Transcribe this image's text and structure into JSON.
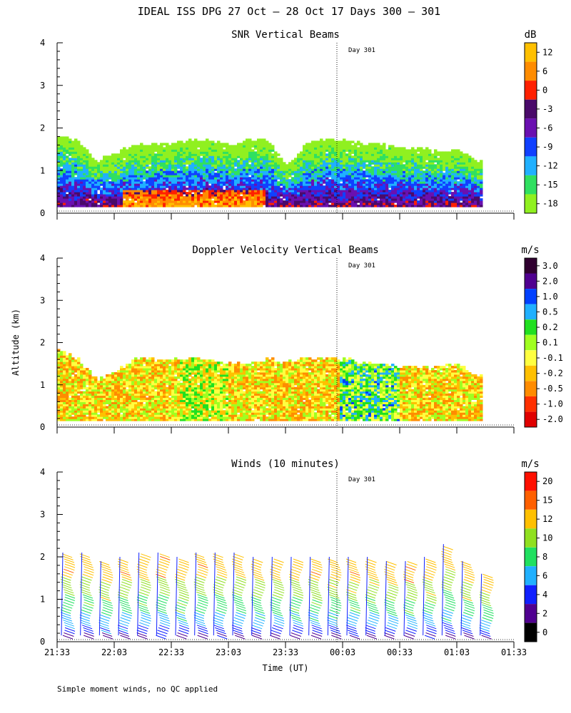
{
  "title": "IDEAL ISS DPG  27 Oct – 28 Oct 17 Days 300 – 301",
  "ylabel": "Altitude (km)",
  "xlabel": "Time (UT)",
  "footnote": "Simple moment winds, no QC applied",
  "day_marker": "Day 301",
  "chart_data": [
    {
      "type": "heatmap",
      "title": "SNR Vertical Beams",
      "unit": "dB",
      "ylim": [
        0,
        4
      ],
      "yticks": [
        "0",
        "1",
        "2",
        "3",
        "4"
      ],
      "colorbar_labels": [
        "12",
        "6",
        "0",
        "-3",
        "-6",
        "-9",
        "-12",
        "-15",
        "-18"
      ],
      "colors": [
        "#ffc000",
        "#ff8c00",
        "#ff2000",
        "#4a0a6a",
        "#6a10b0",
        "#1040ff",
        "#20b0ff",
        "#30e060",
        "#90f020"
      ],
      "profiles": [
        {
          "time": "21:33",
          "top_km": 1.8
        },
        {
          "time": "21:43",
          "top_km": 1.7
        },
        {
          "time": "21:53",
          "top_km": 1.2
        },
        {
          "time": "22:03",
          "top_km": 1.4
        },
        {
          "time": "22:13",
          "top_km": 1.6
        },
        {
          "time": "22:23",
          "top_km": 1.6
        },
        {
          "time": "22:33",
          "top_km": 1.6
        },
        {
          "time": "22:43",
          "top_km": 1.7
        },
        {
          "time": "22:53",
          "top_km": 1.7
        },
        {
          "time": "23:03",
          "top_km": 1.6
        },
        {
          "time": "23:13",
          "top_km": 1.7
        },
        {
          "time": "23:23",
          "top_km": 1.7
        },
        {
          "time": "23:33",
          "top_km": 1.1
        },
        {
          "time": "23:43",
          "top_km": 1.6
        },
        {
          "time": "23:53",
          "top_km": 1.7
        },
        {
          "time": "00:03",
          "top_km": 1.7
        },
        {
          "time": "00:13",
          "top_km": 1.6
        },
        {
          "time": "00:23",
          "top_km": 1.6
        },
        {
          "time": "00:33",
          "top_km": 1.5
        },
        {
          "time": "00:43",
          "top_km": 1.5
        },
        {
          "time": "00:53",
          "top_km": 1.4
        },
        {
          "time": "01:03",
          "top_km": 1.5
        },
        {
          "time": "01:13",
          "top_km": 1.2
        }
      ]
    },
    {
      "type": "heatmap",
      "title": "Doppler Velocity Vertical Beams",
      "unit": "m/s",
      "ylim": [
        0,
        4
      ],
      "yticks": [
        "0",
        "1",
        "2",
        "3",
        "4"
      ],
      "colorbar_labels": [
        "3.0",
        "2.0",
        "1.0",
        "0.5",
        "0.2",
        "0.1",
        "-0.1",
        "-0.2",
        "-0.5",
        "-1.0",
        "-2.0"
      ],
      "colors": [
        "#300030",
        "#500090",
        "#0040ff",
        "#20b0ff",
        "#20e020",
        "#a0ff20",
        "#ffff40",
        "#ffc000",
        "#ff8c00",
        "#ff3000",
        "#e00000"
      ],
      "profiles": [
        {
          "time": "21:33",
          "top_km": 1.8
        },
        {
          "time": "21:43",
          "top_km": 1.6
        },
        {
          "time": "21:53",
          "top_km": 1.1
        },
        {
          "time": "22:03",
          "top_km": 1.3
        },
        {
          "time": "22:13",
          "top_km": 1.6
        },
        {
          "time": "22:23",
          "top_km": 1.6
        },
        {
          "time": "22:33",
          "top_km": 1.6
        },
        {
          "time": "22:43",
          "top_km": 1.6
        },
        {
          "time": "22:53",
          "top_km": 1.6
        },
        {
          "time": "23:03",
          "top_km": 1.5
        },
        {
          "time": "23:13",
          "top_km": 1.5
        },
        {
          "time": "23:23",
          "top_km": 1.6
        },
        {
          "time": "23:33",
          "top_km": 1.5
        },
        {
          "time": "23:43",
          "top_km": 1.6
        },
        {
          "time": "23:53",
          "top_km": 1.6
        },
        {
          "time": "00:03",
          "top_km": 1.6
        },
        {
          "time": "00:13",
          "top_km": 1.5
        },
        {
          "time": "00:23",
          "top_km": 1.5
        },
        {
          "time": "00:33",
          "top_km": 1.4
        },
        {
          "time": "00:43",
          "top_km": 1.4
        },
        {
          "time": "00:53",
          "top_km": 1.4
        },
        {
          "time": "01:03",
          "top_km": 1.5
        },
        {
          "time": "01:13",
          "top_km": 1.2
        }
      ]
    },
    {
      "type": "scatter",
      "title": "Winds (10 minutes)",
      "unit": "m/s",
      "ylim": [
        0,
        4
      ],
      "yticks": [
        "0",
        "1",
        "2",
        "3",
        "4"
      ],
      "colorbar_labels": [
        "20",
        "15",
        "12",
        "10",
        "8",
        "6",
        "4",
        "2",
        "0"
      ],
      "colors": [
        "#ff1000",
        "#ff6000",
        "#ffc000",
        "#90e020",
        "#20e060",
        "#20b0ff",
        "#1020ff",
        "#500090",
        "#000000"
      ],
      "profiles": [
        {
          "time": "21:36",
          "top_km": 2.1
        },
        {
          "time": "21:46",
          "top_km": 2.1
        },
        {
          "time": "21:56",
          "top_km": 1.9
        },
        {
          "time": "22:06",
          "top_km": 2.0
        },
        {
          "time": "22:16",
          "top_km": 2.1
        },
        {
          "time": "22:26",
          "top_km": 2.1
        },
        {
          "time": "22:36",
          "top_km": 2.0
        },
        {
          "time": "22:46",
          "top_km": 2.1
        },
        {
          "time": "22:56",
          "top_km": 2.1
        },
        {
          "time": "23:06",
          "top_km": 2.1
        },
        {
          "time": "23:16",
          "top_km": 2.0
        },
        {
          "time": "23:26",
          "top_km": 2.0
        },
        {
          "time": "23:36",
          "top_km": 2.0
        },
        {
          "time": "23:46",
          "top_km": 2.0
        },
        {
          "time": "23:56",
          "top_km": 2.0
        },
        {
          "time": "00:06",
          "top_km": 2.0
        },
        {
          "time": "00:16",
          "top_km": 2.0
        },
        {
          "time": "00:26",
          "top_km": 1.9
        },
        {
          "time": "00:36",
          "top_km": 1.9
        },
        {
          "time": "00:46",
          "top_km": 2.0
        },
        {
          "time": "00:56",
          "top_km": 2.3
        },
        {
          "time": "01:06",
          "top_km": 1.9
        },
        {
          "time": "01:16",
          "top_km": 1.6
        }
      ]
    }
  ],
  "xticks": [
    "21:33",
    "22:03",
    "22:33",
    "23:03",
    "23:33",
    "00:03",
    "00:33",
    "01:03",
    "01:33"
  ]
}
